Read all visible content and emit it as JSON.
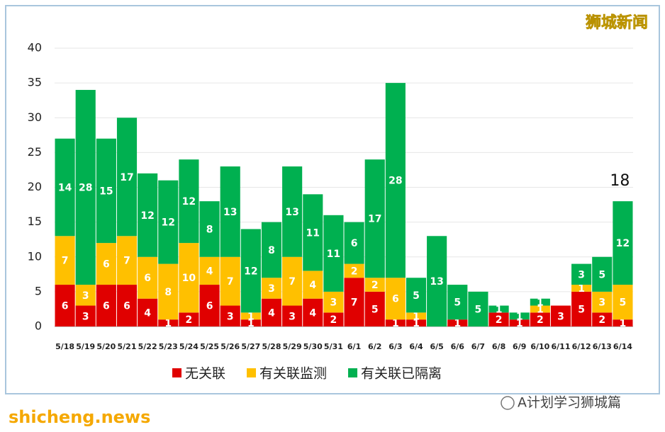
{
  "chart_data": {
    "type": "stacked_bar",
    "categories": [
      "5/18",
      "5/19",
      "5/20",
      "5/21",
      "5/22",
      "5/23",
      "5/24",
      "5/25",
      "5/26",
      "5/27",
      "5/28",
      "5/29",
      "5/30",
      "5/31",
      "6/1",
      "6/2",
      "6/3",
      "6/4",
      "6/5",
      "6/6",
      "6/7",
      "6/8",
      "6/9",
      "6/10",
      "6/11",
      "6/12",
      "6/13",
      "6/14"
    ],
    "series": [
      {
        "name": "无关联",
        "color": "#e00000",
        "values": [
          6,
          3,
          6,
          6,
          4,
          1,
          2,
          6,
          3,
          1,
          4,
          3,
          4,
          2,
          7,
          5,
          1,
          1,
          0,
          1,
          0,
          2,
          1,
          2,
          3,
          5,
          2,
          1
        ]
      },
      {
        "name": "有关联监测",
        "color": "#ffc000",
        "values": [
          7,
          3,
          6,
          7,
          6,
          8,
          10,
          4,
          7,
          1,
          3,
          7,
          4,
          3,
          2,
          2,
          6,
          1,
          0,
          0,
          0,
          0,
          0,
          1,
          0,
          1,
          3,
          5
        ]
      },
      {
        "name": "有关联已隔离",
        "color": "#00b050",
        "values": [
          14,
          28,
          15,
          17,
          12,
          12,
          12,
          8,
          13,
          12,
          8,
          13,
          11,
          11,
          6,
          17,
          28,
          5,
          13,
          5,
          5,
          1,
          1,
          1,
          0,
          3,
          5,
          12
        ]
      }
    ],
    "ylim": [
      0,
      40
    ],
    "yticks": [
      0,
      5,
      10,
      15,
      20,
      25,
      30,
      35,
      40
    ],
    "grid": true,
    "annotation": "18",
    "legend": "bottom"
  },
  "watermarks": {
    "brand": "狮城新闻",
    "source": "A计划学习狮城篇",
    "site": "shicheng.news"
  }
}
